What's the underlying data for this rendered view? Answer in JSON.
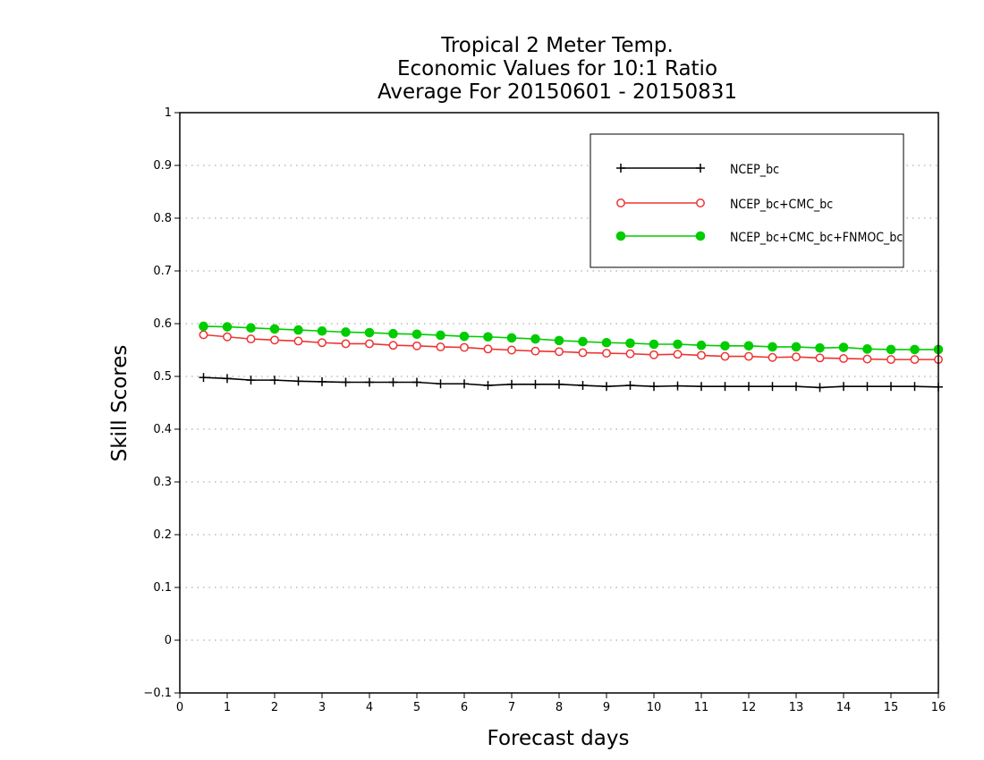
{
  "chart_data": {
    "type": "line",
    "title_lines": [
      "Tropical 2 Meter Temp.",
      "Economic Values for 10:1 Ratio",
      "Average For 20150601 - 20150831"
    ],
    "xlabel": "Forecast days",
    "ylabel": "Skill Scores",
    "xlim": [
      0,
      16
    ],
    "ylim": [
      -0.1,
      1
    ],
    "xticks": [
      "0",
      "1",
      "2",
      "3",
      "4",
      "5",
      "6",
      "7",
      "8",
      "9",
      "10",
      "11",
      "12",
      "13",
      "14",
      "15",
      "16"
    ],
    "yticks": [
      "−0.1",
      "0",
      "0.1",
      "0.2",
      "0.3",
      "0.4",
      "0.5",
      "0.6",
      "0.7",
      "0.8",
      "0.9",
      "1"
    ],
    "grid": "horizontal dotted",
    "legend_position": "top-right",
    "x": [
      0.5,
      1,
      1.5,
      2,
      2.5,
      3,
      3.5,
      4,
      4.5,
      5,
      5.5,
      6,
      6.5,
      7,
      7.5,
      8,
      8.5,
      9,
      9.5,
      10,
      10.5,
      11,
      11.5,
      12,
      12.5,
      13,
      13.5,
      14,
      14.5,
      15,
      15.5,
      16
    ],
    "series": [
      {
        "name": "NCEP_bc",
        "color": "#000000",
        "marker": "plus",
        "values": [
          0.498,
          0.496,
          0.493,
          0.493,
          0.491,
          0.49,
          0.489,
          0.489,
          0.489,
          0.489,
          0.486,
          0.486,
          0.483,
          0.485,
          0.485,
          0.485,
          0.483,
          0.481,
          0.483,
          0.481,
          0.482,
          0.481,
          0.481,
          0.481,
          0.481,
          0.481,
          0.479,
          0.481,
          0.481,
          0.481,
          0.481,
          0.48
        ]
      },
      {
        "name": "NCEP_bc+CMC_bc",
        "color": "#ee3333",
        "marker": "open-circle",
        "values": [
          0.579,
          0.575,
          0.571,
          0.569,
          0.567,
          0.564,
          0.562,
          0.562,
          0.559,
          0.558,
          0.556,
          0.555,
          0.552,
          0.55,
          0.548,
          0.547,
          0.545,
          0.544,
          0.543,
          0.541,
          0.542,
          0.54,
          0.538,
          0.538,
          0.536,
          0.537,
          0.535,
          0.534,
          0.533,
          0.532,
          0.532,
          0.532
        ]
      },
      {
        "name": "NCEP_bc+CMC_bc+FNMOC_bc",
        "color": "#00cc00",
        "marker": "filled-circle",
        "values": [
          0.595,
          0.594,
          0.592,
          0.59,
          0.588,
          0.586,
          0.584,
          0.583,
          0.581,
          0.58,
          0.578,
          0.576,
          0.575,
          0.573,
          0.571,
          0.568,
          0.566,
          0.564,
          0.563,
          0.561,
          0.561,
          0.559,
          0.558,
          0.558,
          0.556,
          0.556,
          0.554,
          0.555,
          0.552,
          0.551,
          0.551,
          0.551
        ]
      }
    ]
  }
}
